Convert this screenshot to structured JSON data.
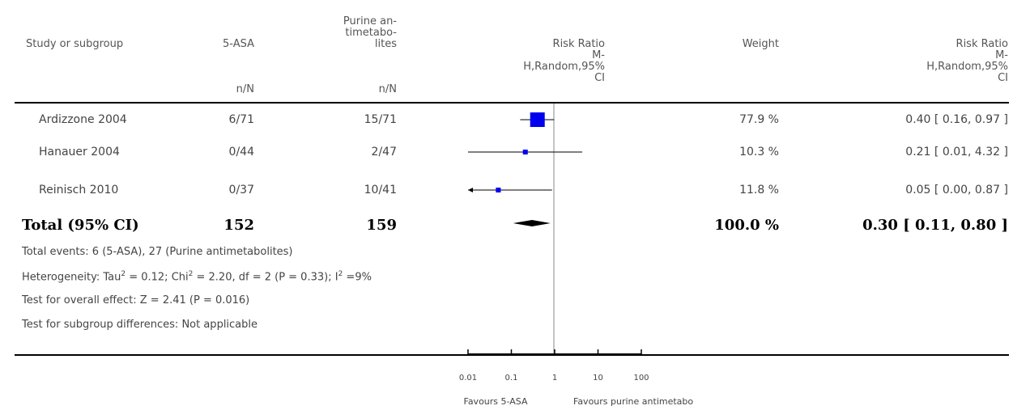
{
  "headers": {
    "study": "Study or subgroup",
    "group1": "5-ASA",
    "group1_sub": "n/N",
    "group2": [
      "Purine an-",
      "timetabo-",
      "lites"
    ],
    "group2_sub": "n/N",
    "plot": [
      "Risk Ratio",
      "M-",
      "H,Random,95%",
      "CI"
    ],
    "weight": "Weight",
    "effect": [
      "Risk Ratio",
      "M-",
      "H,Random,95%",
      "CI"
    ]
  },
  "total": {
    "label": "Total (95% CI)",
    "n1": "152",
    "n2": "159",
    "weight": "100.0 %",
    "effect": "0.30 [ 0.11, 0.80 ]"
  },
  "footnotes": {
    "events": "Total events: 6 (5-ASA), 27 (Purine antimetabolites)",
    "het_a": "Heterogeneity: Tau",
    "het_b": " = 0.12; Chi",
    "het_c": " = 2.20, df = 2 (P = 0.33); I",
    "het_d": " =9%",
    "sup2": "2",
    "overall": "Test for overall effect: Z = 2.41 (P = 0.016)",
    "subgroup": "Test for subgroup differences: Not applicable"
  },
  "axis": {
    "ticks": [
      "0.01",
      "0.1",
      "1",
      "10",
      "100"
    ],
    "favours_left": "Favours 5-ASA",
    "favours_right": "Favours purine antimetabo"
  },
  "colors": {
    "marker": "#0000ee",
    "diamond": "#000000",
    "line": "#000000"
  },
  "chart_data": {
    "type": "forest",
    "scale": "log",
    "xlim": [
      0.01,
      100
    ],
    "studies": [
      {
        "name": "Ardizzone 2004",
        "n1": "6/71",
        "n2": "15/71",
        "rr": 0.4,
        "lo": 0.16,
        "hi": 0.97,
        "weight": "77.9 %",
        "text": "0.40 [ 0.16, 0.97 ]"
      },
      {
        "name": "Hanauer 2004",
        "n1": "0/44",
        "n2": "2/47",
        "rr": 0.21,
        "lo": 0.01,
        "hi": 4.32,
        "weight": "10.3 %",
        "text": "0.21 [ 0.01, 4.32 ]"
      },
      {
        "name": "Reinisch 2010",
        "n1": "0/37",
        "n2": "10/41",
        "rr": 0.05,
        "lo": 0.0,
        "hi": 0.87,
        "weight": "11.8 %",
        "text": "0.05 [ 0.00, 0.87 ]"
      }
    ],
    "pooled": {
      "rr": 0.3,
      "lo": 0.11,
      "hi": 0.8
    }
  }
}
